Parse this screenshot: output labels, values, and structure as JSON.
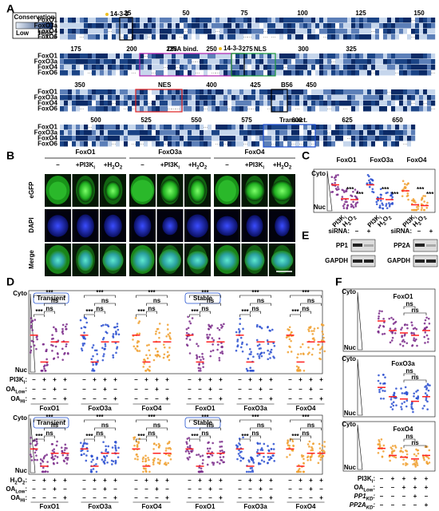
{
  "panel_a": {
    "label": "A",
    "legend": {
      "title": "Conservation",
      "low": "Low",
      "high": "High"
    },
    "rows": [
      "FoxO1",
      "FoxO3a",
      "FoxO4",
      "FoxO6"
    ],
    "positions": [
      [
        25,
        50,
        75,
        100,
        125,
        150
      ],
      [
        175,
        200,
        225,
        250,
        275,
        300,
        325
      ],
      [
        350,
        400,
        425,
        450
      ],
      [
        500,
        525,
        550,
        575,
        600,
        625,
        650
      ]
    ],
    "annotations": [
      "14-3-3",
      "14-3-3",
      "DNA bind.",
      "NLS",
      "NES",
      "B56",
      "Transact."
    ]
  },
  "panel_b": {
    "label": "B",
    "groups": [
      "FoxO1",
      "FoxO3a",
      "FoxO4"
    ],
    "columns": [
      [
        "–"
      ],
      [
        "+PI3K",
        "i"
      ],
      [
        "+H",
        "2",
        "O",
        "2"
      ]
    ],
    "rows": [
      "eGFP",
      "DAPI",
      "Merge"
    ]
  },
  "panel_c": {
    "label": "C",
    "titles": [
      "FoxO1",
      "FoxO3a",
      "FoxO4"
    ],
    "axis": [
      "Cyto",
      "Nuc"
    ],
    "xlabels": [
      [
        "PI3K",
        "i"
      ],
      [
        "H",
        "2",
        "O",
        "2"
      ]
    ],
    "sig": "***"
  },
  "panel_e": {
    "label": "E",
    "sirna": "siRNA:",
    "conditions": [
      "–",
      "+"
    ],
    "blots": [
      "PP1",
      "PP2A"
    ],
    "control": "GAPDH"
  },
  "panel_d": {
    "label": "D",
    "modes": [
      "Transient",
      "Stable"
    ],
    "axis": [
      "Cyto",
      "Nuc"
    ],
    "groups": [
      "FoxO1",
      "FoxO3a",
      "FoxO4"
    ],
    "rows_top": [
      [
        "PI3K",
        "i",
        ":"
      ],
      [
        "OA",
        "Low",
        ":"
      ],
      [
        "OA",
        "Hi",
        ":"
      ]
    ],
    "rows_bottom": [
      [
        "H",
        "2",
        "O",
        "2",
        ":"
      ],
      [
        "OA",
        "Low",
        ":"
      ],
      [
        "OA",
        "Hi",
        ":"
      ]
    ],
    "signs": [
      [
        "–",
        "+",
        "+",
        "+"
      ],
      [
        "–",
        "–",
        "+",
        "–"
      ],
      [
        "–",
        "–",
        "–",
        "+"
      ]
    ],
    "sig": [
      "***",
      "ns"
    ]
  },
  "panel_f": {
    "label": "F",
    "titles": [
      "FoxO1",
      "FoxO3a",
      "FoxO4"
    ],
    "axis": [
      "Cyto",
      "Nuc"
    ],
    "rows": [
      [
        "PI3K",
        "i",
        ":"
      ],
      [
        "OA",
        "Low",
        ":"
      ],
      [
        "PP1",
        "KD",
        ":"
      ],
      [
        "PP2A",
        "KD",
        ":"
      ]
    ],
    "signs": [
      [
        "–",
        "+",
        "+",
        "+",
        "+"
      ],
      [
        "–",
        "–",
        "+",
        "+",
        "+"
      ],
      [
        "–",
        "–",
        "–",
        "+",
        "–"
      ],
      [
        "–",
        "–",
        "–",
        "–",
        "+"
      ]
    ],
    "sig": "ns"
  }
}
